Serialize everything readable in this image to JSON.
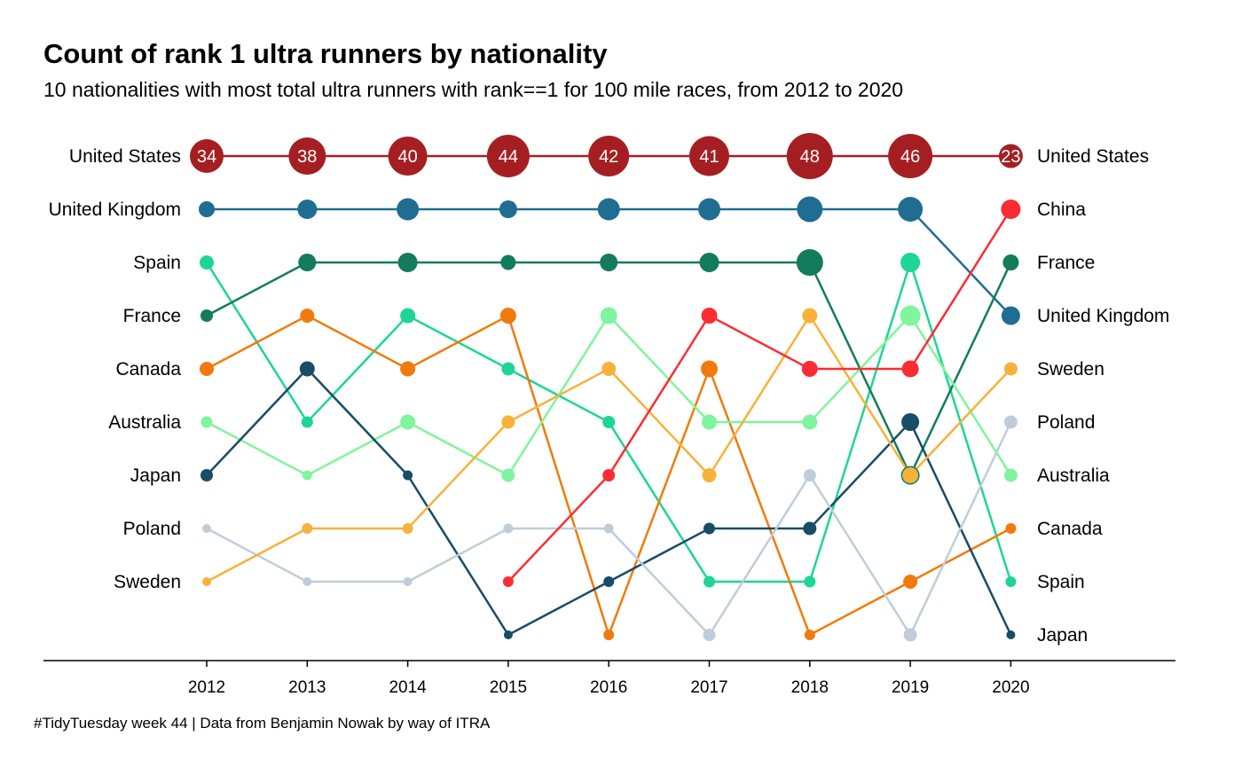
{
  "title": "Count of rank 1 ultra runners by nationality",
  "subtitle": "10 nationalities with most total ultra runners with rank==1 for 100 mile races, from 2012 to 2020",
  "caption": "#TidyTuesday week 44 | Data from Benjamin Nowak by way of ITRA",
  "chart_data": {
    "type": "line",
    "subtype": "bump chart (rank by year, point size = count)",
    "years": [
      "2012",
      "2013",
      "2014",
      "2015",
      "2016",
      "2017",
      "2018",
      "2019",
      "2020"
    ],
    "y_axis": "rank (1 = top)",
    "left_labels": [
      "United States",
      "United Kingdom",
      "Spain",
      "France",
      "Canada",
      "Australia",
      "Japan",
      "Poland",
      "Sweden"
    ],
    "right_labels": [
      "United States",
      "China",
      "France",
      "United Kingdom",
      "Sweden",
      "Poland",
      "Australia",
      "Canada",
      "Spain",
      "Japan"
    ],
    "series": [
      {
        "name": "United States",
        "color": "#a51f22",
        "ranks": [
          1,
          1,
          1,
          1,
          1,
          1,
          1,
          1,
          1
        ],
        "counts": [
          34,
          38,
          40,
          44,
          42,
          41,
          48,
          46,
          23
        ],
        "show_counts": true
      },
      {
        "name": "United Kingdom",
        "color": "#1f6e92",
        "ranks": [
          2,
          2,
          2,
          2,
          2,
          2,
          2,
          2,
          4
        ],
        "counts": [
          14,
          18,
          21,
          16,
          21,
          21,
          25,
          24,
          17
        ]
      },
      {
        "name": "Spain",
        "color": "#1dd693",
        "ranks": [
          3,
          6,
          4,
          5,
          6,
          9,
          9,
          3,
          9
        ],
        "counts": [
          12,
          9,
          13,
          11,
          10,
          9,
          9,
          18,
          8
        ]
      },
      {
        "name": "France",
        "color": "#137c5a",
        "ranks": [
          4,
          3,
          3,
          3,
          3,
          3,
          3,
          7,
          3
        ],
        "counts": [
          10,
          16,
          18,
          13,
          16,
          18,
          26,
          17,
          14
        ]
      },
      {
        "name": "Canada",
        "color": "#f07b0c",
        "ranks": [
          5,
          4,
          5,
          4,
          10,
          5,
          10,
          9,
          8
        ],
        "counts": [
          12,
          12,
          13,
          14,
          8,
          15,
          8,
          12,
          8
        ]
      },
      {
        "name": "Australia",
        "color": "#7ff59d",
        "ranks": [
          6,
          7,
          6,
          7,
          4,
          6,
          6,
          4,
          7
        ],
        "counts": [
          9,
          7,
          13,
          11,
          15,
          13,
          13,
          19,
          11
        ]
      },
      {
        "name": "Japan",
        "color": "#184c67",
        "ranks": [
          7,
          5,
          7,
          10,
          9,
          8,
          8,
          6,
          10
        ],
        "counts": [
          10,
          13,
          7,
          6,
          8,
          9,
          11,
          16,
          6
        ]
      },
      {
        "name": "Poland",
        "color": "#bfcddb",
        "ranks": [
          8,
          9,
          9,
          8,
          8,
          10,
          7,
          10,
          6
        ],
        "counts": [
          6,
          6,
          6,
          7,
          7,
          10,
          10,
          11,
          11
        ]
      },
      {
        "name": "Sweden",
        "color": "#f8b13b",
        "ranks": [
          9,
          8,
          8,
          6,
          5,
          7,
          4,
          7,
          5
        ],
        "counts": [
          6,
          8,
          8,
          11,
          12,
          12,
          13,
          14,
          11
        ]
      },
      {
        "name": "China",
        "color": "#fb2d32",
        "ranks": [
          null,
          null,
          null,
          9,
          7,
          4,
          5,
          5,
          2
        ],
        "counts": [
          null,
          null,
          null,
          8,
          10,
          14,
          14,
          15,
          18
        ]
      }
    ],
    "grid": false,
    "legend": "none"
  }
}
